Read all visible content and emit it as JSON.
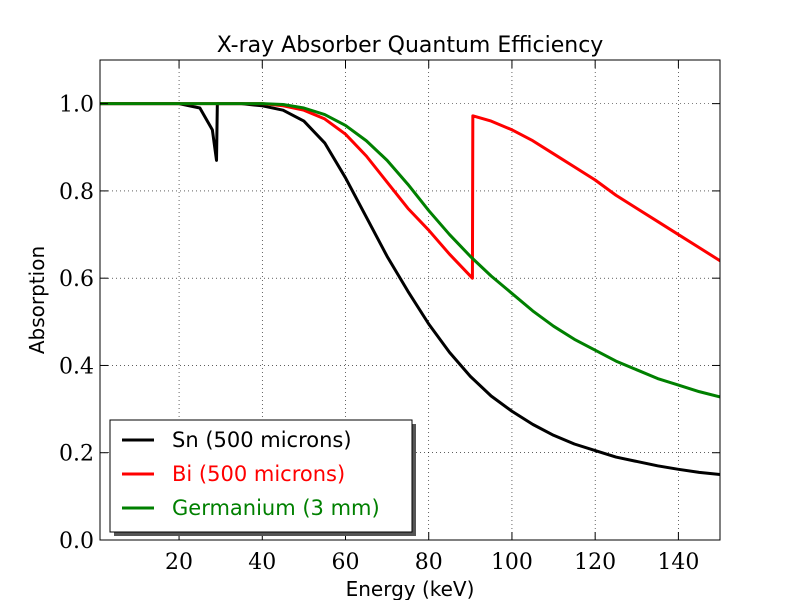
{
  "chart_data": {
    "type": "line",
    "title": "X-ray Absorber Quantum Efficiency",
    "xlabel": "Energy (keV)",
    "ylabel": "Absorption",
    "xlim": [
      1,
      150
    ],
    "ylim": [
      0.0,
      1.1
    ],
    "xticks": [
      20,
      40,
      60,
      80,
      100,
      120,
      140
    ],
    "yticks": [
      0.0,
      0.2,
      0.4,
      0.6,
      0.8,
      1.0
    ],
    "ytick_labels": [
      "0.0",
      "0.2",
      "0.4",
      "0.6",
      "0.8",
      "1.0"
    ],
    "grid": true,
    "legend_position": "lower-left",
    "series": [
      {
        "name": "Sn (500 microns)",
        "color": "#000000",
        "x": [
          1,
          10,
          20,
          25,
          28,
          29,
          29.2,
          32,
          35,
          40,
          45,
          50,
          55,
          60,
          65,
          70,
          75,
          80,
          85,
          90,
          95,
          100,
          105,
          110,
          115,
          120,
          125,
          130,
          135,
          140,
          145,
          150
        ],
        "y": [
          1.0,
          1.0,
          1.0,
          0.99,
          0.94,
          0.87,
          1.0,
          1.0,
          1.0,
          0.995,
          0.985,
          0.96,
          0.91,
          0.83,
          0.74,
          0.65,
          0.57,
          0.495,
          0.43,
          0.375,
          0.33,
          0.295,
          0.265,
          0.24,
          0.22,
          0.205,
          0.19,
          0.18,
          0.17,
          0.162,
          0.155,
          0.15
        ]
      },
      {
        "name": "Bi (500 microns)",
        "color": "#ff0000",
        "x": [
          1,
          20,
          40,
          45,
          50,
          55,
          60,
          65,
          70,
          75,
          80,
          85,
          90.5,
          90.6,
          95,
          100,
          105,
          110,
          115,
          120,
          125,
          130,
          135,
          140,
          145,
          150
        ],
        "y": [
          1.0,
          1.0,
          1.0,
          0.995,
          0.985,
          0.965,
          0.93,
          0.88,
          0.82,
          0.76,
          0.71,
          0.655,
          0.6,
          0.972,
          0.96,
          0.94,
          0.915,
          0.885,
          0.855,
          0.825,
          0.79,
          0.76,
          0.73,
          0.7,
          0.67,
          0.64
        ]
      },
      {
        "name": "Germanium (3 mm)",
        "color": "#008000",
        "x": [
          1,
          20,
          40,
          45,
          50,
          55,
          60,
          65,
          70,
          75,
          80,
          85,
          90,
          95,
          100,
          105,
          110,
          115,
          120,
          125,
          130,
          135,
          140,
          145,
          150
        ],
        "y": [
          1.0,
          1.0,
          1.0,
          0.998,
          0.99,
          0.975,
          0.95,
          0.915,
          0.87,
          0.815,
          0.755,
          0.7,
          0.65,
          0.605,
          0.565,
          0.525,
          0.49,
          0.46,
          0.435,
          0.41,
          0.39,
          0.37,
          0.355,
          0.34,
          0.328
        ]
      }
    ]
  }
}
